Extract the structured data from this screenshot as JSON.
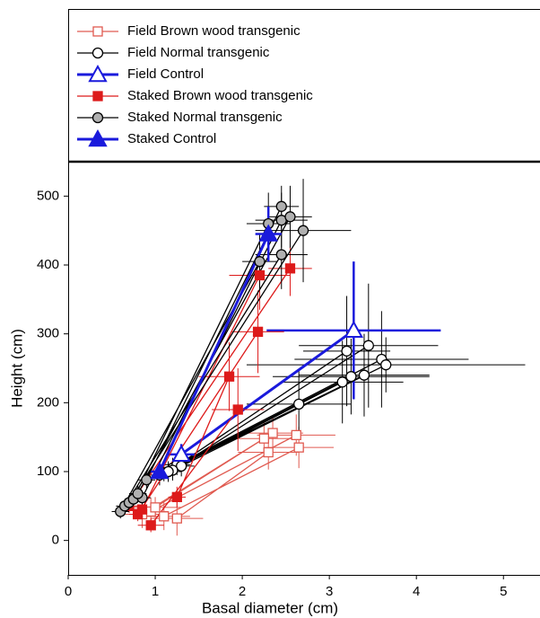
{
  "chart_data": {
    "type": "scatter",
    "x_label": "Basal diameter (cm)",
    "y_label": "Height (cm)",
    "xlim": [
      0,
      5.42
    ],
    "ylim": [
      -50,
      550
    ],
    "xticks": [
      0,
      1,
      2,
      3,
      4,
      5
    ],
    "yticks": [
      0,
      100,
      200,
      300,
      400,
      500
    ],
    "series": [
      {
        "name": "Field Brown wood transgenic",
        "color": "#e05a50",
        "marker": "square-open",
        "x": [
          1.25,
          2.3,
          null,
          1.1,
          2.65,
          null,
          0.95,
          2.62,
          null,
          1.0,
          2.35,
          null,
          0.85,
          2.25
        ],
        "y": [
          32,
          128,
          null,
          35,
          135,
          null,
          42,
          153,
          null,
          48,
          156,
          null,
          38,
          148
        ],
        "xerr": [
          0.3,
          0.35,
          null,
          0.3,
          0.4,
          null,
          0.2,
          0.45,
          null,
          0.3,
          0.35,
          null,
          0.25,
          0.4
        ],
        "yerr": [
          25,
          25,
          null,
          20,
          30,
          null,
          20,
          30,
          null,
          15,
          25,
          null,
          20,
          25
        ]
      },
      {
        "name": "Field Normal transgenic",
        "color": "#000000",
        "marker": "circle-open",
        "x": [
          1.05,
          2.65,
          null,
          1.15,
          3.15,
          null,
          1.2,
          3.25,
          null,
          1.1,
          3.4,
          null,
          1.25,
          3.6,
          null,
          1.3,
          3.65,
          null,
          1.2,
          3.45,
          null,
          1.15,
          3.2
        ],
        "y": [
          95,
          198,
          null,
          100,
          230,
          null,
          105,
          238,
          null,
          98,
          240,
          null,
          110,
          263,
          null,
          108,
          255,
          null,
          102,
          283,
          null,
          100,
          275
        ],
        "xerr": [
          0.15,
          0.6,
          null,
          0.15,
          0.7,
          null,
          0.1,
          0.9,
          null,
          0.12,
          0.75,
          null,
          0.15,
          1.0,
          null,
          0.15,
          1.6,
          null,
          0.1,
          0.8,
          null,
          0.12,
          0.5
        ],
        "yerr": [
          15,
          50,
          null,
          15,
          60,
          null,
          15,
          55,
          null,
          12,
          60,
          null,
          15,
          70,
          null,
          15,
          40,
          null,
          15,
          90,
          null,
          12,
          80
        ]
      },
      {
        "name": "Field Control",
        "color": "#1a1adc",
        "marker": "triangle-open",
        "x": [
          1.3,
          3.28
        ],
        "y": [
          125,
          305
        ],
        "xerr": [
          0.15,
          1.0
        ],
        "yerr": [
          15,
          100
        ]
      },
      {
        "name": "Staked Brown wood transgenic",
        "color": "#dd1a1a",
        "marker": "square-filled",
        "x": [
          0.95,
          1.95,
          null,
          1.25,
          1.85,
          null,
          0.8,
          2.18,
          null,
          0.85,
          2.2,
          null,
          0.7,
          2.55
        ],
        "y": [
          22,
          190,
          null,
          63,
          238,
          null,
          38,
          303,
          null,
          45,
          385,
          null,
          50,
          395
        ],
        "xerr": [
          0.15,
          0.3,
          null,
          0.1,
          0.35,
          null,
          0.1,
          0.3,
          null,
          0.1,
          0.35,
          null,
          0.1,
          0.25
        ],
        "yerr": [
          10,
          60,
          null,
          15,
          50,
          null,
          10,
          60,
          null,
          10,
          50,
          null,
          10,
          40
        ]
      },
      {
        "name": "Staked Normal transgenic",
        "color": "#000000",
        "marker": "circle-gray",
        "x": [
          0.6,
          2.2,
          null,
          0.65,
          2.45,
          null,
          0.7,
          2.7,
          null,
          0.75,
          2.3,
          null,
          0.85,
          2.45,
          null,
          0.8,
          2.55,
          null,
          0.9,
          2.45
        ],
        "y": [
          42,
          405,
          null,
          50,
          415,
          null,
          55,
          450,
          null,
          60,
          460,
          null,
          62,
          465,
          null,
          68,
          470,
          null,
          88,
          485
        ],
        "xerr": [
          0.1,
          0.2,
          null,
          0.1,
          0.3,
          null,
          0.1,
          0.55,
          null,
          0.1,
          0.25,
          null,
          0.1,
          0.3,
          null,
          0.1,
          0.25,
          null,
          0.1,
          0.2
        ],
        "yerr": [
          10,
          40,
          null,
          10,
          50,
          null,
          10,
          75,
          null,
          12,
          45,
          null,
          10,
          40,
          null,
          12,
          45,
          null,
          12,
          30
        ]
      },
      {
        "name": "Staked Control",
        "color": "#1a1adc",
        "marker": "triangle-filled",
        "x": [
          1.05,
          2.3
        ],
        "y": [
          100,
          445
        ],
        "xerr": [
          0.1,
          0.15
        ],
        "yerr": [
          10,
          40
        ]
      }
    ]
  }
}
